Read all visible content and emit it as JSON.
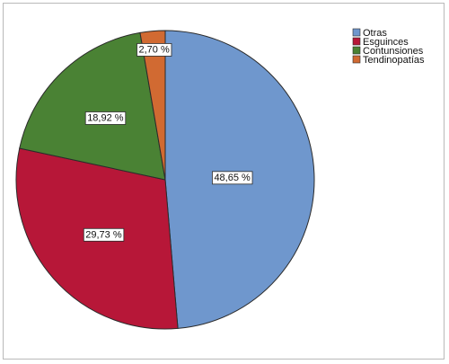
{
  "chart_data": {
    "type": "pie",
    "title": "",
    "categories": [
      "Otras",
      "Esguinces",
      "Contunsiones",
      "Tendinopatías"
    ],
    "values": [
      48.65,
      29.73,
      18.92,
      2.7
    ],
    "labels": [
      "48,65 %",
      "29,73 %",
      "18,92 %",
      "2,70 %"
    ],
    "colors": [
      "#6f97cd",
      "#b71738",
      "#4a8234",
      "#d16a32"
    ],
    "start_angle": "12 o'clock",
    "direction": "clockwise",
    "legend": {
      "placement": "top-right",
      "entries": [
        "Otras",
        "Esguinces",
        "Contunsiones",
        "Tendinopatías"
      ]
    }
  }
}
